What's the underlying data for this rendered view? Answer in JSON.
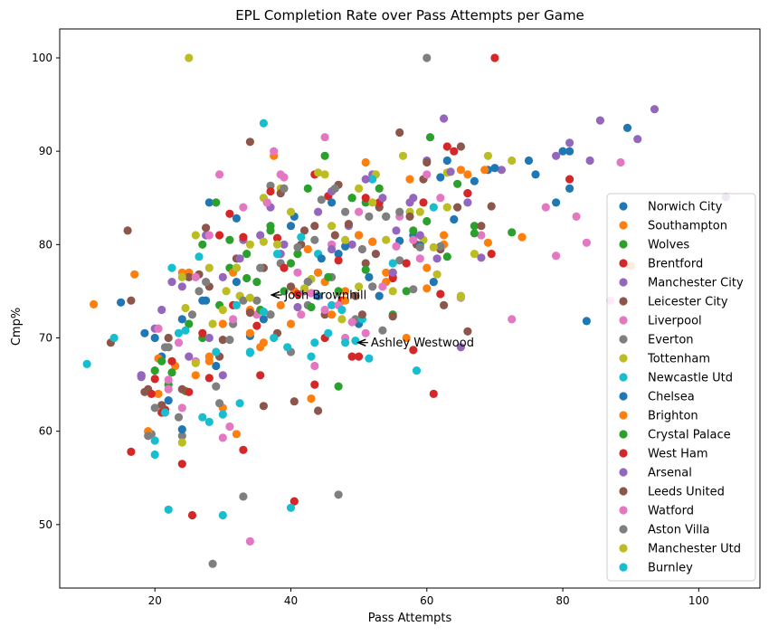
{
  "chart_data": {
    "type": "scatter",
    "title": "EPL Completion Rate over Pass Attempts per Game",
    "xlabel": "Pass Attempts",
    "ylabel": "Cmp%",
    "xlim": [
      6,
      109
    ],
    "ylim": [
      43.2,
      103.1
    ],
    "xticks": [
      20,
      40,
      60,
      80,
      100
    ],
    "yticks": [
      50,
      60,
      70,
      80,
      90,
      100
    ],
    "grid": false,
    "legend_position": "right",
    "series": [
      {
        "name": "Norwich City",
        "color": "#1f77b4",
        "x": [
          15,
          18.5,
          21,
          24,
          27.5,
          28,
          32,
          36,
          40,
          44,
          47,
          50,
          55,
          58,
          61,
          63,
          66,
          69,
          75,
          80,
          81,
          83.5,
          89.5
        ],
        "y": [
          73.8,
          70.5,
          68,
          72,
          74,
          84.5,
          76,
          72,
          82,
          74.5,
          79,
          71.5,
          77,
          81,
          76,
          89,
          85.5,
          88,
          89,
          90,
          86,
          71.8,
          92.5
        ]
      },
      {
        "name": "Southampton",
        "color": "#ff7f0e",
        "x": [
          11,
          17,
          19,
          20.5,
          23,
          25,
          28,
          30,
          32,
          34,
          35.5,
          37.5,
          40,
          43,
          45,
          48,
          51,
          54,
          57,
          60,
          62.5,
          66,
          68.5,
          74,
          90
        ],
        "y": [
          73.6,
          76.8,
          60,
          64,
          67,
          77,
          68,
          62.5,
          59.7,
          73,
          69,
          89.5,
          71.5,
          63.5,
          76,
          75,
          88.8,
          77,
          70,
          77.5,
          80,
          87.5,
          88,
          80.8,
          77.7
        ]
      },
      {
        "name": "Wolves",
        "color": "#2ca02c",
        "x": [
          20,
          22,
          24.5,
          27,
          29,
          31,
          33.5,
          35,
          37,
          40,
          42.5,
          45,
          47,
          49,
          51,
          54,
          57,
          60,
          64.5,
          67,
          72.5
        ],
        "y": [
          66.5,
          65,
          64.3,
          70,
          84.5,
          77.5,
          79,
          76,
          81.5,
          78,
          86,
          89.5,
          75,
          85,
          84.5,
          83,
          75,
          82.5,
          86.5,
          82,
          81.3
        ]
      },
      {
        "name": "Brentford",
        "color": "#d62728",
        "x": [
          16.5,
          20,
          21.5,
          24,
          25.5,
          28,
          31,
          33,
          35.5,
          38,
          40.5,
          43.5,
          45.5,
          47.5,
          50,
          52,
          55,
          58,
          61,
          63,
          66,
          70,
          81
        ],
        "y": [
          57.8,
          65.6,
          62.3,
          56.5,
          51,
          65.7,
          83.3,
          58,
          66,
          80.7,
          52.5,
          65,
          85.2,
          74,
          68,
          80.3,
          76.4,
          68.7,
          64,
          90.5,
          85.5,
          100,
          87
        ]
      },
      {
        "name": "Manchester City",
        "color": "#9467bd",
        "x": [
          18,
          21,
          24,
          27.5,
          30,
          33,
          36.5,
          38.5,
          41,
          44,
          46,
          49,
          52,
          55.5,
          58,
          60,
          62.5,
          65,
          71,
          79,
          81,
          84,
          85.5,
          91,
          93.5,
          104
        ],
        "y": [
          65.8,
          73,
          75.5,
          81,
          66,
          80.5,
          84.5,
          79,
          73.3,
          77,
          85.7,
          80,
          87.5,
          81.5,
          85,
          89,
          93.5,
          69,
          88,
          89.5,
          90.9,
          89,
          93.3,
          91.3,
          94.5,
          85.1
        ]
      },
      {
        "name": "Leicester City",
        "color": "#8c564b",
        "x": [
          13.5,
          16,
          16.5,
          19,
          22,
          25,
          27.5,
          29.5,
          32,
          34,
          36,
          38,
          40.5,
          41.5,
          43.5,
          45,
          47,
          49.5,
          51,
          53,
          56,
          58.5,
          60,
          62,
          65,
          66,
          69.5
        ],
        "y": [
          69.5,
          81.5,
          74,
          64.5,
          70,
          76.5,
          81.8,
          68,
          78.5,
          91,
          62.7,
          70.5,
          63.2,
          80,
          82,
          72.5,
          86.4,
          74.5,
          78,
          84,
          92,
          80,
          88.8,
          79.5,
          90.5,
          70.7,
          84.1
        ]
      },
      {
        "name": "Liverpool",
        "color": "#e377c2",
        "x": [
          20.5,
          22,
          23.5,
          26,
          29.5,
          31,
          33,
          35,
          37.5,
          38.5,
          41,
          43.5,
          45,
          46,
          48,
          50,
          52,
          56,
          59,
          62,
          65,
          68,
          72.5,
          77.5,
          79,
          82,
          83.5,
          87,
          88.5
        ],
        "y": [
          71,
          64.5,
          69.5,
          67.5,
          87.5,
          60.5,
          84,
          72.5,
          90,
          87.5,
          77,
          67,
          91.5,
          80,
          70,
          83.5,
          75.5,
          83,
          78.5,
          85,
          74.3,
          81,
          72,
          84,
          78.8,
          83,
          80.2,
          74,
          88.8
        ]
      },
      {
        "name": "Everton",
        "color": "#7f7f7f",
        "x": [
          18,
          19.5,
          22,
          24,
          26.5,
          28.5,
          29,
          31.5,
          33,
          35,
          37,
          38.5,
          40,
          42.5,
          43.5,
          46,
          47,
          49.5,
          51.5,
          53.5,
          56,
          58,
          60,
          62
        ],
        "y": [
          66,
          59.7,
          69,
          59.5,
          75,
          45.8,
          64.8,
          71.5,
          53,
          74,
          86.3,
          78,
          68.5,
          73.5,
          80.5,
          76.5,
          53.2,
          72,
          83,
          70.8,
          78.3,
          75.2,
          100,
          79.8
        ]
      },
      {
        "name": "Tottenham",
        "color": "#bcbd22",
        "x": [
          24,
          24.5,
          26,
          28.5,
          30.5,
          32.5,
          34,
          36,
          38.5,
          41,
          43,
          45,
          47.5,
          50,
          52.5,
          55,
          57.5,
          59.5,
          61.5,
          63,
          65,
          67,
          69,
          72.5
        ],
        "y": [
          58.8,
          73.2,
          81,
          71.5,
          75,
          74.5,
          80,
          85,
          86,
          79,
          76.3,
          87.5,
          72,
          86,
          87.5,
          75,
          83.5,
          80.5,
          76.8,
          87.7,
          74.5,
          79,
          89.5,
          89
        ]
      },
      {
        "name": "Newcastle Utd",
        "color": "#17becf",
        "x": [
          10,
          14,
          20,
          22,
          23.5,
          26.5,
          28,
          30,
          32.5,
          34,
          36,
          38,
          40,
          43,
          44,
          46,
          48,
          50.5,
          52,
          55,
          58.5,
          61
        ],
        "y": [
          67.2,
          70,
          57.5,
          51.6,
          70.5,
          78.7,
          61,
          51,
          63,
          68.5,
          93,
          79,
          51.8,
          68,
          79,
          73.5,
          69.5,
          72,
          87,
          78,
          66.5,
          84
        ]
      },
      {
        "name": "Chelsea",
        "color": "#1f77b4",
        "x": [
          20,
          22,
          24,
          27,
          29,
          32,
          34,
          37,
          40.5,
          42.5,
          44.5,
          46,
          48,
          50,
          51.5,
          53,
          56,
          59,
          62,
          64,
          67,
          70,
          76,
          79,
          81
        ],
        "y": [
          70,
          63.3,
          60.2,
          74,
          67,
          82.8,
          70.2,
          72.5,
          83,
          76,
          78.5,
          84.5,
          79.8,
          81,
          76.5,
          74.5,
          80.4,
          79.9,
          87.2,
          82.7,
          86.8,
          88.2,
          87.5,
          84.5,
          90
        ]
      },
      {
        "name": "Brighton",
        "color": "#ff7f0e",
        "x": [
          19,
          20.5,
          24,
          26,
          28,
          30,
          31.5,
          34,
          36,
          38.5,
          40.5,
          42.5,
          44,
          46,
          48,
          50,
          52,
          54,
          57.5,
          60,
          62.5,
          65,
          69
        ],
        "y": [
          60,
          67.8,
          77,
          66,
          67.5,
          71.5,
          77,
          70.5,
          69.5,
          73.5,
          75,
          79.5,
          77,
          72.5,
          74,
          81,
          80.3,
          76,
          87,
          75.3,
          81,
          88,
          80.2
        ]
      },
      {
        "name": "Crystal Palace",
        "color": "#2ca02c",
        "x": [
          21,
          22.5,
          25,
          27,
          29.5,
          31,
          33.5,
          35.5,
          37,
          39,
          41,
          43,
          45.5,
          47,
          49,
          51,
          53,
          55,
          58,
          60.5,
          63,
          67
        ],
        "y": [
          67.5,
          66.3,
          71.5,
          80,
          73.5,
          80.5,
          76.4,
          73,
          82,
          75,
          79,
          73.3,
          76.5,
          64.8,
          85,
          77.3,
          86,
          72.5,
          81.5,
          91.5,
          78.7,
          81.2
        ]
      },
      {
        "name": "West Ham",
        "color": "#d62728",
        "x": [
          19.5,
          21,
          22.5,
          25,
          27,
          29.5,
          31.5,
          33,
          35,
          37,
          39,
          41,
          43.5,
          45,
          47,
          49,
          51,
          53,
          55,
          57,
          59.5,
          62,
          64,
          69.5
        ],
        "y": [
          64,
          62,
          67.5,
          64.2,
          70.5,
          81,
          73.5,
          80.8,
          71.3,
          85.7,
          77.5,
          74.7,
          87.5,
          70,
          78.3,
          68,
          85,
          84.5,
          76.5,
          78,
          84.5,
          74.7,
          90,
          79
        ]
      },
      {
        "name": "Arsenal",
        "color": "#9467bd",
        "x": [
          18,
          20,
          22.5,
          25,
          28,
          30,
          32.5,
          35.5,
          37,
          39,
          42,
          44,
          46,
          48.5,
          51,
          53.5,
          55,
          57.5,
          59,
          61.5,
          63.5,
          66,
          68
        ],
        "y": [
          66,
          71,
          76,
          68,
          70,
          76.5,
          78.5,
          81,
          84,
          80,
          75,
          83.5,
          79.5,
          82,
          87,
          85,
          77,
          84.5,
          81,
          78.5,
          87.8,
          84.5,
          78.6
        ]
      },
      {
        "name": "Leeds United",
        "color": "#8c564b",
        "x": [
          18.5,
          21,
          24,
          26.5,
          28,
          30,
          32,
          34,
          36,
          38.5,
          40,
          42,
          44,
          46.5,
          48.5,
          50.5,
          52.5,
          55,
          57.5,
          59.5,
          62.5,
          64.5,
          68
        ],
        "y": [
          64.2,
          62.8,
          64.5,
          76.8,
          75.5,
          69.8,
          77.5,
          72.7,
          77.5,
          85.5,
          75.5,
          81.5,
          62.2,
          81,
          82.2,
          72.5,
          79,
          72.3,
          83,
          87,
          73.5,
          84,
          82
        ]
      },
      {
        "name": "Watford",
        "color": "#e377c2",
        "x": [
          20.5,
          22,
          24,
          26,
          28,
          30,
          31.5,
          34,
          36.5,
          39,
          41.5,
          43,
          45,
          47,
          49,
          51,
          53.5,
          55.5,
          58,
          60
        ],
        "y": [
          71,
          65.5,
          62.5,
          76.5,
          81,
          59.3,
          72,
          48.2,
          84.5,
          87.2,
          72.5,
          74.8,
          73,
          73.5,
          71.7,
          70.5,
          75.5,
          79.8,
          80.5,
          87.5
        ]
      },
      {
        "name": "Aston Villa",
        "color": "#7f7f7f",
        "x": [
          19,
          20,
          21.5,
          23.5,
          25.5,
          27.5,
          29.5,
          31,
          33,
          35.5,
          37,
          39,
          41,
          42.5,
          44.5,
          46.5,
          48,
          50.5,
          52,
          54,
          56,
          59
        ],
        "y": [
          59.5,
          62.5,
          69,
          61.5,
          72.5,
          76,
          63,
          69.8,
          74,
          77.5,
          72.5,
          86,
          79.7,
          76,
          84.8,
          86,
          83.5,
          79.5,
          75.5,
          83,
          83.5,
          79.7
        ]
      },
      {
        "name": "Manchester Utd",
        "color": "#bcbd22",
        "x": [
          24,
          26,
          28,
          30,
          32,
          34,
          36,
          38,
          40,
          42,
          44,
          46,
          48,
          50,
          52,
          54,
          56.5,
          59,
          61,
          63,
          65,
          25
        ],
        "y": [
          76.5,
          67.3,
          77.5,
          73,
          77.5,
          74.3,
          80.3,
          80,
          83.5,
          75.3,
          87.7,
          82,
          80.5,
          75.5,
          84.5,
          80.5,
          89.5,
          83.5,
          79.7,
          84,
          74.4,
          100
        ]
      },
      {
        "name": "Burnley",
        "color": "#17becf",
        "x": [
          20,
          21.5,
          22.5,
          24.5,
          27,
          29,
          30,
          32,
          34,
          36,
          37.5,
          39.5,
          41.5,
          43.5,
          45.5,
          47.5,
          49.5,
          51.5
        ],
        "y": [
          59,
          62,
          77.5,
          70.8,
          61.5,
          68.5,
          61.8,
          73.5,
          68.4,
          72.8,
          70,
          69,
          80.8,
          69.5,
          70.5,
          73,
          69.7,
          67.8
        ]
      }
    ],
    "annotations": [
      {
        "text": "Josh Brownhill",
        "x": 36.8,
        "y": 74.6
      },
      {
        "text": "Ashley Westwood",
        "x": 49.5,
        "y": 69.5
      }
    ]
  }
}
